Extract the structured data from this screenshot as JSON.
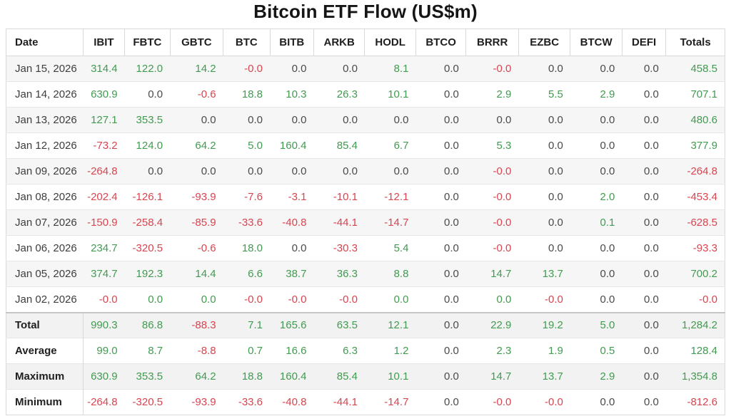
{
  "title": "Bitcoin ETF Flow (US$m)",
  "colors": {
    "positive": "#419b50",
    "negative": "#d9444f",
    "neutral": "#4a4a4a"
  },
  "chart_data": {
    "type": "table",
    "title": "Bitcoin ETF Flow (US$m)",
    "columns": [
      "Date",
      "IBIT",
      "FBTC",
      "GBTC",
      "BTC",
      "BITB",
      "ARKB",
      "HODL",
      "BTCO",
      "BRRR",
      "EZBC",
      "BTCW",
      "DEFI",
      "Totals"
    ],
    "rows": [
      {
        "date": "Jan 15, 2026",
        "values": [
          "314.4",
          "122.0",
          "14.2",
          "-0.0",
          "0.0",
          "0.0",
          "8.1",
          "0.0",
          "-0.0",
          "0.0",
          "0.0",
          "0.0",
          "458.5"
        ],
        "colors": [
          "g",
          "g",
          "g",
          "r",
          "n",
          "n",
          "g",
          "n",
          "r",
          "n",
          "n",
          "n",
          "g"
        ]
      },
      {
        "date": "Jan 14, 2026",
        "values": [
          "630.9",
          "0.0",
          "-0.6",
          "18.8",
          "10.3",
          "26.3",
          "10.1",
          "0.0",
          "2.9",
          "5.5",
          "2.9",
          "0.0",
          "707.1"
        ],
        "colors": [
          "g",
          "n",
          "r",
          "g",
          "g",
          "g",
          "g",
          "n",
          "g",
          "g",
          "g",
          "n",
          "g"
        ]
      },
      {
        "date": "Jan 13, 2026",
        "values": [
          "127.1",
          "353.5",
          "0.0",
          "0.0",
          "0.0",
          "0.0",
          "0.0",
          "0.0",
          "0.0",
          "0.0",
          "0.0",
          "0.0",
          "480.6"
        ],
        "colors": [
          "g",
          "g",
          "n",
          "n",
          "n",
          "n",
          "n",
          "n",
          "n",
          "n",
          "n",
          "n",
          "g"
        ]
      },
      {
        "date": "Jan 12, 2026",
        "values": [
          "-73.2",
          "124.0",
          "64.2",
          "5.0",
          "160.4",
          "85.4",
          "6.7",
          "0.0",
          "5.3",
          "0.0",
          "0.0",
          "0.0",
          "377.9"
        ],
        "colors": [
          "r",
          "g",
          "g",
          "g",
          "g",
          "g",
          "g",
          "n",
          "g",
          "n",
          "n",
          "n",
          "g"
        ]
      },
      {
        "date": "Jan 09, 2026",
        "values": [
          "-264.8",
          "0.0",
          "0.0",
          "0.0",
          "0.0",
          "0.0",
          "0.0",
          "0.0",
          "-0.0",
          "0.0",
          "0.0",
          "0.0",
          "-264.8"
        ],
        "colors": [
          "r",
          "n",
          "n",
          "n",
          "n",
          "n",
          "n",
          "n",
          "r",
          "n",
          "n",
          "n",
          "r"
        ]
      },
      {
        "date": "Jan 08, 2026",
        "values": [
          "-202.4",
          "-126.1",
          "-93.9",
          "-7.6",
          "-3.1",
          "-10.1",
          "-12.1",
          "0.0",
          "-0.0",
          "0.0",
          "2.0",
          "0.0",
          "-453.4"
        ],
        "colors": [
          "r",
          "r",
          "r",
          "r",
          "r",
          "r",
          "r",
          "n",
          "r",
          "n",
          "g",
          "n",
          "r"
        ]
      },
      {
        "date": "Jan 07, 2026",
        "values": [
          "-150.9",
          "-258.4",
          "-85.9",
          "-33.6",
          "-40.8",
          "-44.1",
          "-14.7",
          "0.0",
          "-0.0",
          "0.0",
          "0.1",
          "0.0",
          "-628.5"
        ],
        "colors": [
          "r",
          "r",
          "r",
          "r",
          "r",
          "r",
          "r",
          "n",
          "r",
          "n",
          "g",
          "n",
          "r"
        ]
      },
      {
        "date": "Jan 06, 2026",
        "values": [
          "234.7",
          "-320.5",
          "-0.6",
          "18.0",
          "0.0",
          "-30.3",
          "5.4",
          "0.0",
          "-0.0",
          "0.0",
          "0.0",
          "0.0",
          "-93.3"
        ],
        "colors": [
          "g",
          "r",
          "r",
          "g",
          "n",
          "r",
          "g",
          "n",
          "r",
          "n",
          "n",
          "n",
          "r"
        ]
      },
      {
        "date": "Jan 05, 2026",
        "values": [
          "374.7",
          "192.3",
          "14.4",
          "6.6",
          "38.7",
          "36.3",
          "8.8",
          "0.0",
          "14.7",
          "13.7",
          "0.0",
          "0.0",
          "700.2"
        ],
        "colors": [
          "g",
          "g",
          "g",
          "g",
          "g",
          "g",
          "g",
          "n",
          "g",
          "g",
          "n",
          "n",
          "g"
        ]
      },
      {
        "date": "Jan 02, 2026",
        "values": [
          "-0.0",
          "0.0",
          "0.0",
          "-0.0",
          "-0.0",
          "-0.0",
          "0.0",
          "0.0",
          "0.0",
          "-0.0",
          "0.0",
          "0.0",
          "-0.0"
        ],
        "colors": [
          "r",
          "g",
          "g",
          "r",
          "r",
          "r",
          "g",
          "n",
          "g",
          "r",
          "n",
          "n",
          "r"
        ]
      }
    ],
    "summary_rows": [
      {
        "label": "Total",
        "values": [
          "990.3",
          "86.8",
          "-88.3",
          "7.1",
          "165.6",
          "63.5",
          "12.1",
          "0.0",
          "22.9",
          "19.2",
          "5.0",
          "0.0",
          "1,284.2"
        ],
        "colors": [
          "g",
          "g",
          "r",
          "g",
          "g",
          "g",
          "g",
          "n",
          "g",
          "g",
          "g",
          "n",
          "g"
        ]
      },
      {
        "label": "Average",
        "values": [
          "99.0",
          "8.7",
          "-8.8",
          "0.7",
          "16.6",
          "6.3",
          "1.2",
          "0.0",
          "2.3",
          "1.9",
          "0.5",
          "0.0",
          "128.4"
        ],
        "colors": [
          "g",
          "g",
          "r",
          "g",
          "g",
          "g",
          "g",
          "n",
          "g",
          "g",
          "g",
          "n",
          "g"
        ]
      },
      {
        "label": "Maximum",
        "values": [
          "630.9",
          "353.5",
          "64.2",
          "18.8",
          "160.4",
          "85.4",
          "10.1",
          "0.0",
          "14.7",
          "13.7",
          "2.9",
          "0.0",
          "1,354.8"
        ],
        "colors": [
          "g",
          "g",
          "g",
          "g",
          "g",
          "g",
          "g",
          "n",
          "g",
          "g",
          "g",
          "n",
          "g"
        ]
      },
      {
        "label": "Minimum",
        "values": [
          "-264.8",
          "-320.5",
          "-93.9",
          "-33.6",
          "-40.8",
          "-44.1",
          "-14.7",
          "0.0",
          "-0.0",
          "-0.0",
          "0.0",
          "0.0",
          "-812.6"
        ],
        "colors": [
          "r",
          "r",
          "r",
          "r",
          "r",
          "r",
          "r",
          "n",
          "r",
          "r",
          "n",
          "n",
          "r"
        ]
      }
    ]
  }
}
